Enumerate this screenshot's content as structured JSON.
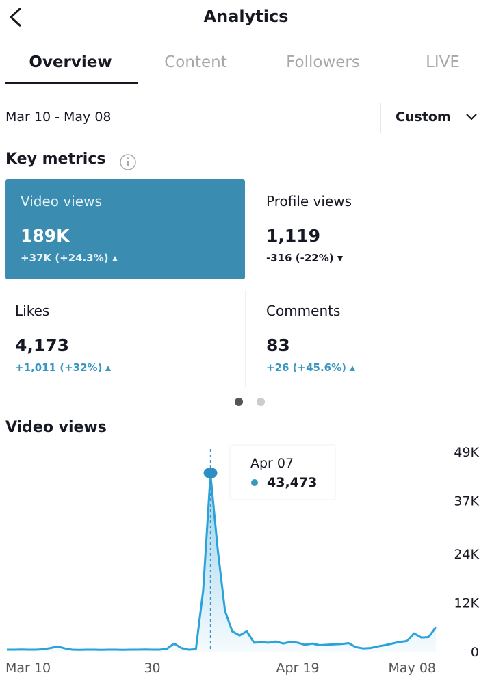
{
  "header": {
    "title": "Analytics"
  },
  "tabs": [
    "Overview",
    "Content",
    "Followers",
    "LIVE"
  ],
  "date_range": "Mar 10 - May 08",
  "period_button": "Custom",
  "key_metrics": {
    "title": "Key metrics",
    "cards": [
      {
        "label": "Video views",
        "value": "189K",
        "change": "+37K (+24.3%)",
        "trend": "up"
      },
      {
        "label": "Profile views",
        "value": "1,119",
        "change": "-316 (-22%)",
        "trend": "down"
      },
      {
        "label": "Likes",
        "value": "4,173",
        "change": "+1,011 (+32%)",
        "trend": "up"
      },
      {
        "label": "Comments",
        "value": "83",
        "change": "+26 (+45.6%)",
        "trend": "up"
      }
    ]
  },
  "chart_data": {
    "type": "line",
    "title": "Video views",
    "categories": [
      "Mar 10",
      null,
      null,
      null,
      null,
      null,
      null,
      null,
      null,
      null,
      null,
      null,
      null,
      null,
      null,
      null,
      null,
      null,
      null,
      null,
      "30",
      null,
      null,
      null,
      null,
      null,
      null,
      null,
      null,
      null,
      null,
      null,
      null,
      null,
      null,
      null,
      null,
      null,
      null,
      null,
      "Apr 19",
      null,
      null,
      null,
      null,
      null,
      null,
      null,
      null,
      null,
      null,
      null,
      null,
      null,
      null,
      null,
      null,
      null,
      null,
      "May 08"
    ],
    "values": [
      500,
      500,
      550,
      500,
      500,
      600,
      900,
      1300,
      800,
      500,
      450,
      500,
      500,
      450,
      500,
      500,
      450,
      500,
      500,
      550,
      500,
      500,
      700,
      2000,
      900,
      500,
      600,
      15000,
      43473,
      25000,
      10000,
      5000,
      4000,
      5000,
      2200,
      2300,
      2200,
      2500,
      2000,
      2400,
      2200,
      1700,
      2000,
      1600,
      1700,
      1800,
      1900,
      2100,
      1100,
      800,
      900,
      1300,
      1600,
      2000,
      2400,
      2600,
      4500,
      3500,
      3600,
      6000
    ],
    "color": "#2ba3d8",
    "ylim": [
      0,
      49000
    ],
    "yticks": [
      0,
      {
        "value": 12000,
        "label": "12K"
      },
      {
        "value": 24000,
        "label": "24K"
      },
      {
        "value": 37000,
        "label": "37K"
      },
      {
        "value": 49000,
        "label": "49K"
      }
    ],
    "y_axis_side": "right",
    "tooltip": {
      "date": "Apr 07",
      "value": "43,473",
      "index": 28
    }
  }
}
